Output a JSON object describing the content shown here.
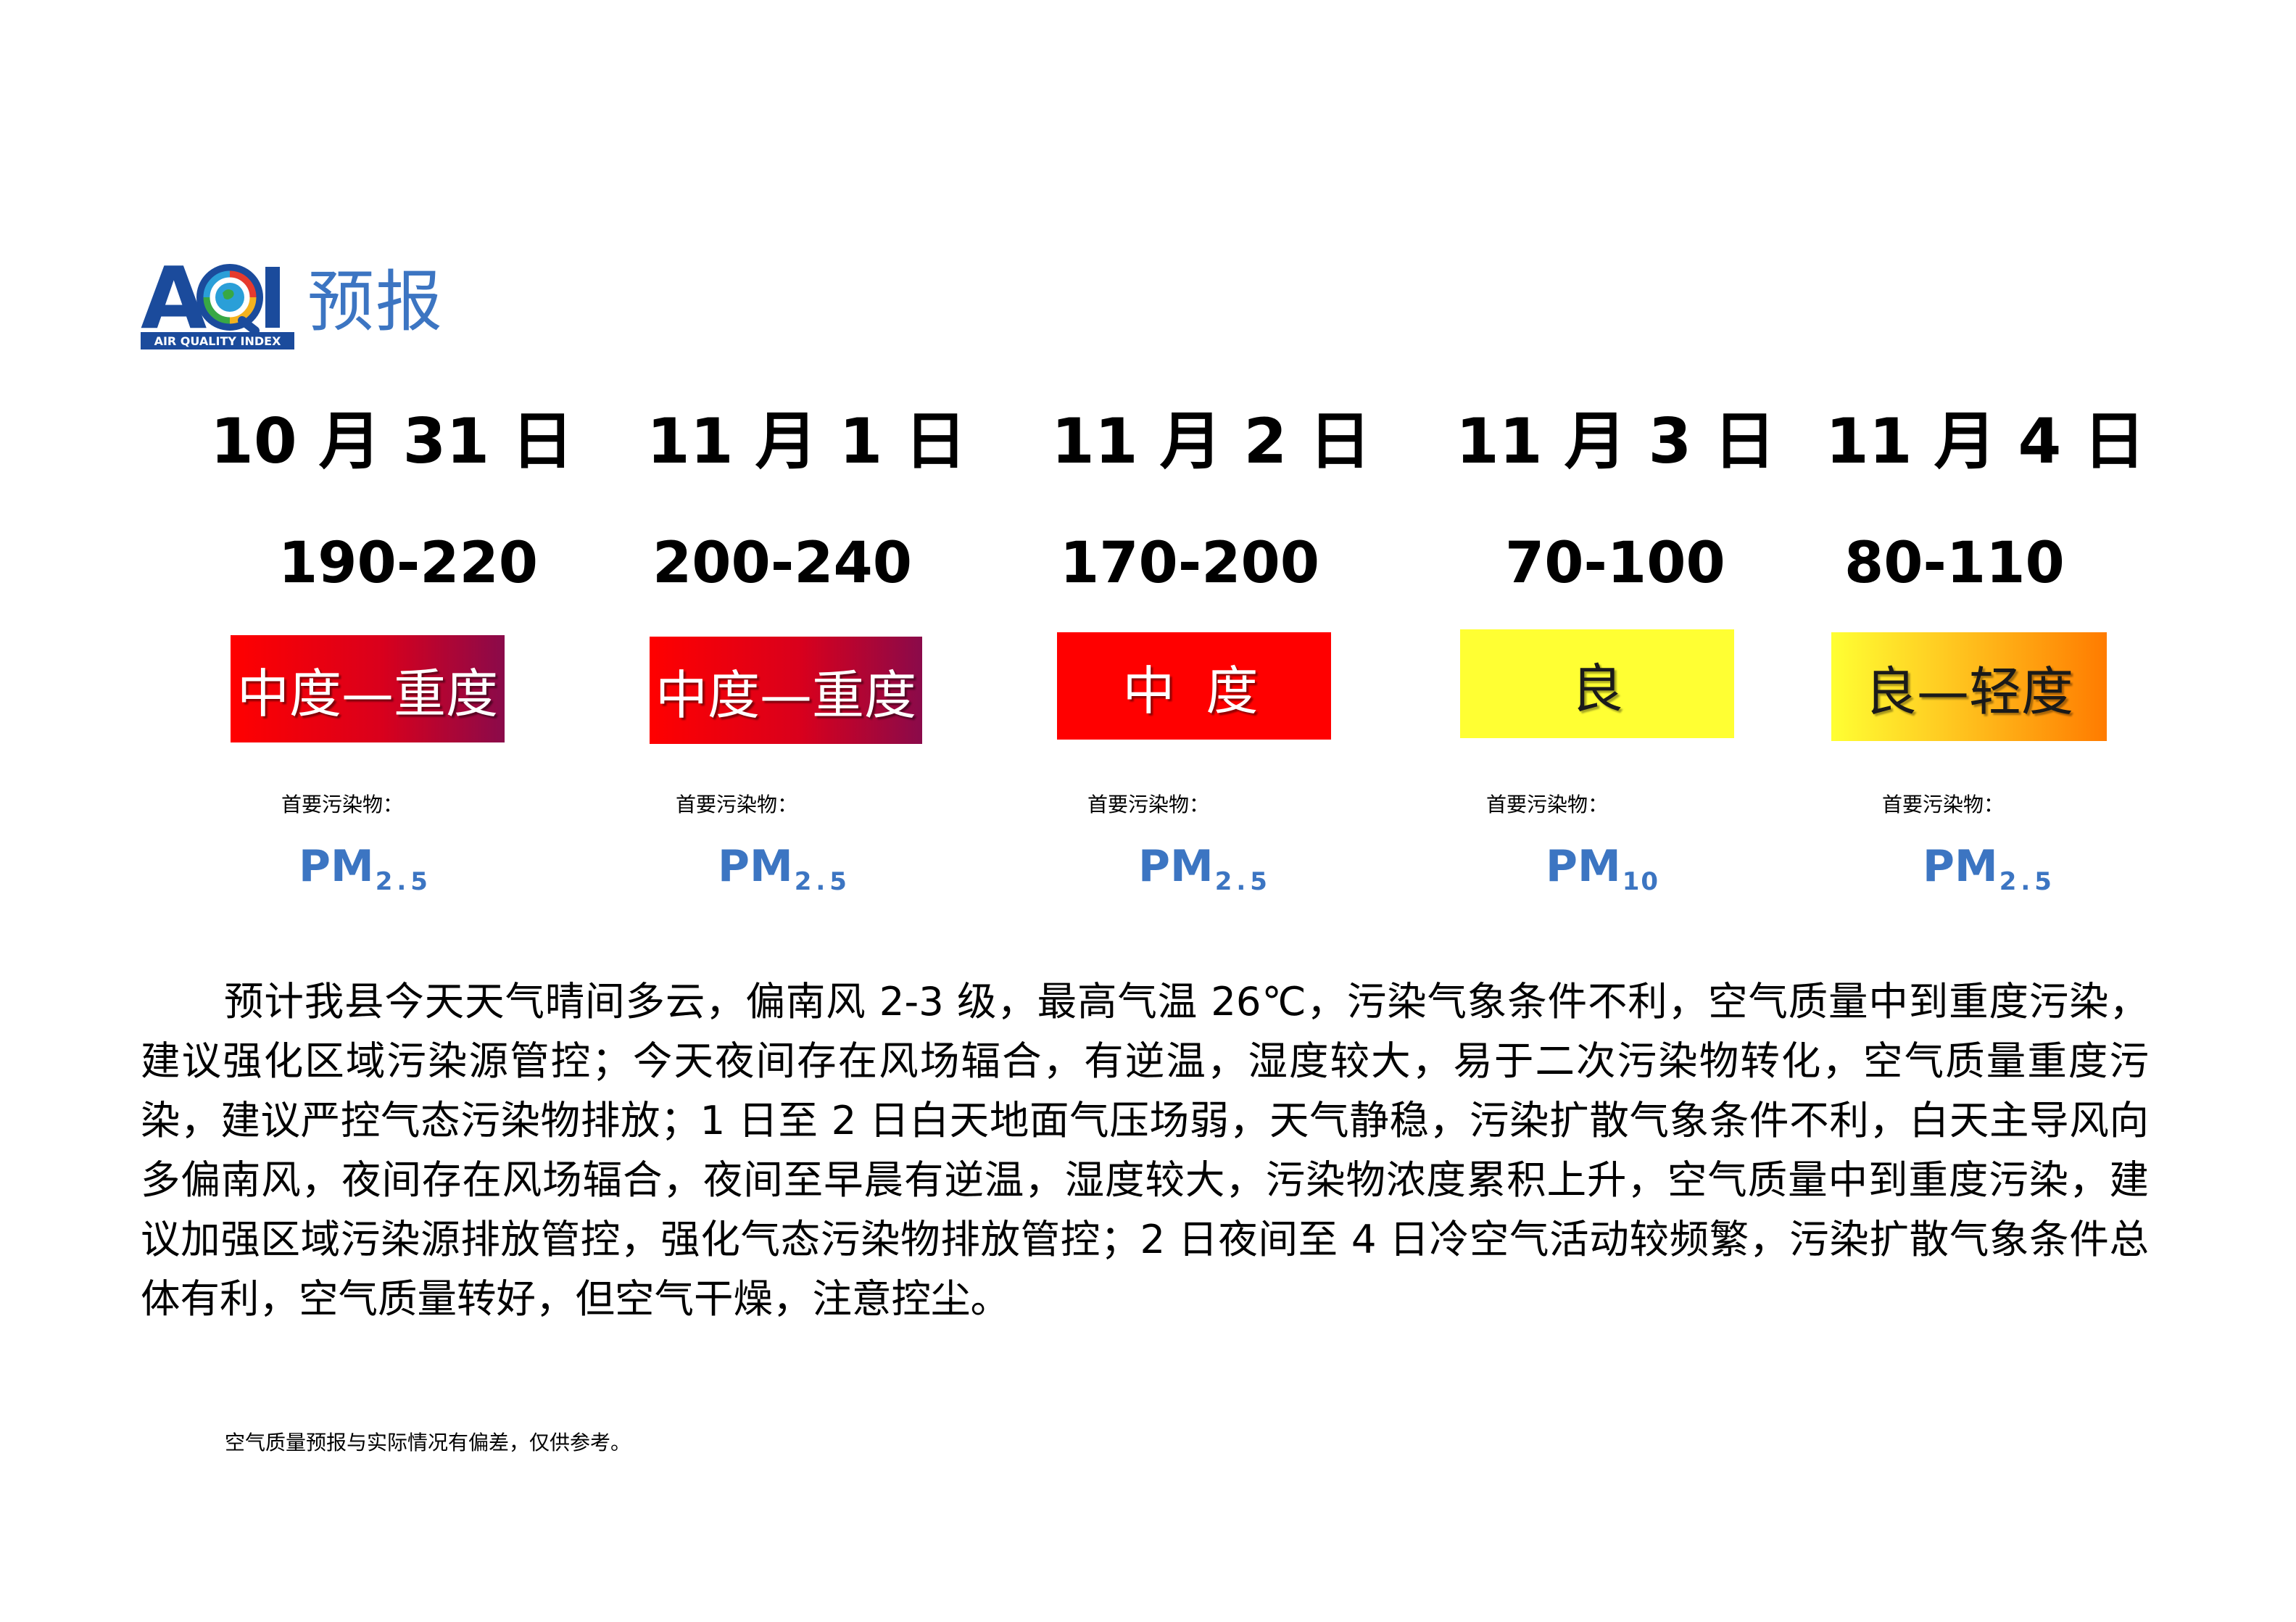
{
  "header": {
    "logo_letters": "AQI",
    "logo_tagline": "AIR QUALITY INDEX",
    "title": "预报"
  },
  "days": [
    {
      "date": "10 月 31 日",
      "aqi_range": "190-220",
      "level": "中度—重度",
      "pollutant_label": "首要污染物：",
      "pollutant_main": "PM",
      "pollutant_sub": "2.5"
    },
    {
      "date": "11 月 1 日",
      "aqi_range": "200-240",
      "level": "中度—重度",
      "pollutant_label": "首要污染物：",
      "pollutant_main": "PM",
      "pollutant_sub": "2.5"
    },
    {
      "date": "11 月 2 日",
      "aqi_range": "170-200",
      "level": "中 度",
      "pollutant_label": "首要污染物：",
      "pollutant_main": "PM",
      "pollutant_sub": "2.5"
    },
    {
      "date": "11 月 3 日",
      "aqi_range": "70-100",
      "level": "良",
      "pollutant_label": "首要污染物：",
      "pollutant_main": "PM",
      "pollutant_sub": "10"
    },
    {
      "date": "11 月 4 日",
      "aqi_range": "80-110",
      "level": "良—轻度",
      "pollutant_label": "首要污染物：",
      "pollutant_main": "PM",
      "pollutant_sub": "2.5"
    }
  ],
  "description": "预计我县今天天气晴间多云，偏南风 2-3 级，最高气温 26℃，污染气象条件不利，空气质量中到重度污染，建议强化区域污染源管控；今天夜间存在风场辐合，有逆温，湿度较大，易于二次污染物转化，空气质量重度污染，建议严控气态污染物排放；1 日至 2 日白天地面气压场弱，天气静稳，污染扩散气象条件不利，白天主导风向多偏南风，夜间存在风场辐合，夜间至早晨有逆温，湿度较大，污染物浓度累积上升，空气质量中到重度污染，建议加强区域污染源排放管控，强化气态污染物排放管控；2 日夜间至 4 日冷空气活动较频繁，污染扩散气象条件总体有利，空气质量转好，但空气干燥，注意控尘。",
  "disclaimer": "空气质量预报与实际情况有偏差，仅供参考。",
  "colors": {
    "logo_blue": "#1b4b9c",
    "title_blue": "#3c75c2",
    "moderate_red": "#ff0000",
    "heavy_maroon": "#8a0a4a",
    "good_yellow": "#ffff33",
    "light_orange": "#ff7b00"
  }
}
